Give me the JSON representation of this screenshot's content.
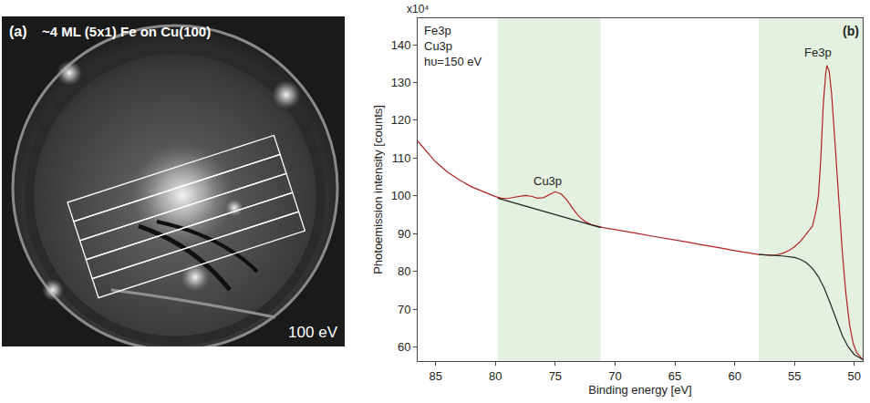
{
  "panel_a": {
    "label": "(a)",
    "title": "~4 ML (5x1) Fe on Cu(100)",
    "energy_label": "100 eV"
  },
  "chart_data": {
    "type": "line",
    "panel_label": "(b)",
    "info": [
      "Fe3p",
      "Cu3p",
      "hυ=150 eV"
    ],
    "y_scale_label": "x10⁴",
    "x_label": "Binding energy [eV]",
    "y_label": "Photoemission intensity [counts]",
    "xlim": [
      86.5,
      49.3
    ],
    "ylim": [
      56.3,
      147
    ],
    "xticks": [
      85,
      80,
      75,
      70,
      65,
      60,
      55,
      50
    ],
    "yticks": [
      60,
      70,
      80,
      90,
      100,
      110,
      120,
      130,
      140
    ],
    "grid": false,
    "bands": [
      [
        79.8,
        71.2
      ],
      [
        58,
        49.3
      ]
    ],
    "band_color": "#e4f1e1",
    "series": [
      {
        "color": "#b22222",
        "x": [
          86.5,
          85,
          84,
          83,
          82,
          81,
          80,
          79.5,
          79,
          78.5,
          78,
          77.5,
          77,
          76.5,
          76,
          75.5,
          75,
          74.5,
          74,
          73.5,
          73,
          72.5,
          72,
          71,
          70,
          69,
          68,
          67,
          66,
          65,
          64,
          63,
          62,
          61,
          60,
          59,
          58,
          57,
          56.5,
          56,
          55.5,
          55,
          54.5,
          54,
          53.5,
          53.2,
          53,
          52.8,
          52.6,
          52.4,
          52.3,
          52.1,
          51.9,
          51.7,
          51.5,
          51.2,
          51,
          50.7,
          50.4,
          50.1,
          49.8,
          49.3
        ],
        "values": [
          114.5,
          109,
          106.3,
          104.2,
          102.4,
          101,
          99.8,
          99.4,
          99.3,
          99.6,
          99.9,
          100.1,
          99.9,
          99.4,
          99.5,
          100.4,
          101.1,
          100.5,
          98.8,
          96.5,
          94.5,
          93.2,
          92.4,
          91.6,
          91.1,
          90.5,
          90,
          89.4,
          88.9,
          88.4,
          87.8,
          87.2,
          86.7,
          86.1,
          85.5,
          85,
          84.5,
          84.3,
          84.4,
          84.8,
          85.5,
          86.5,
          88,
          90,
          92,
          96,
          100,
          110,
          124,
          132,
          134.5,
          133,
          127,
          118,
          108,
          94,
          85,
          74,
          66,
          61,
          58.5,
          56.7
        ]
      },
      {
        "color": "#222222",
        "x": [
          79.8,
          71.2
        ],
        "values": [
          99.4,
          91.6
        ]
      },
      {
        "color": "#222222",
        "x": [
          58,
          57,
          56,
          55,
          54.5,
          54,
          53.5,
          53,
          52.5,
          52,
          51.5,
          51,
          50.5,
          50,
          49.3
        ],
        "values": [
          84.5,
          84.3,
          84.1,
          83.7,
          83.2,
          82.3,
          80.8,
          78.6,
          75.5,
          71.5,
          67,
          63,
          60,
          58,
          56.7
        ]
      }
    ],
    "annotations": [
      {
        "text": "Cu3p",
        "x": 75.6,
        "y": 104
      },
      {
        "text": "Fe3p",
        "x": 53.0,
        "y": 138
      }
    ]
  }
}
